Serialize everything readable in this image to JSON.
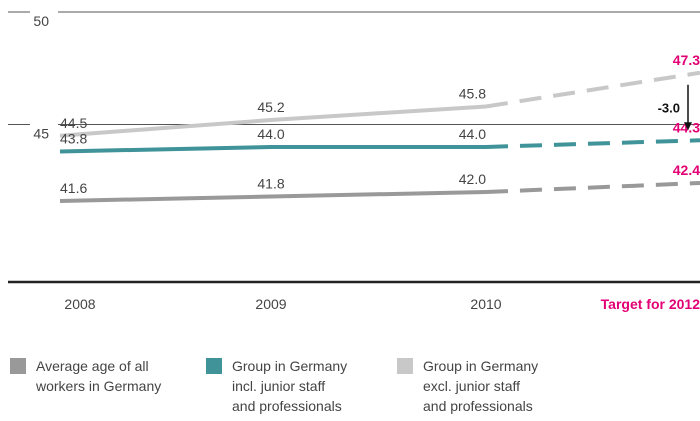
{
  "chart_data": {
    "type": "line",
    "categories": [
      "2008",
      "2009",
      "2010",
      "Target for 2012"
    ],
    "ylim": [
      38,
      50
    ],
    "yticks": [
      45,
      50
    ],
    "title": "",
    "xlabel": "",
    "ylabel": "",
    "series": [
      {
        "name": "Group in Germany excl. junior staff and professionals",
        "color": "#c8c8c8",
        "values": [
          44.5,
          45.2,
          45.8,
          47.3
        ],
        "labels": [
          "44.5",
          "45.2",
          "45.8",
          "47.3"
        ]
      },
      {
        "name": "Group in Germany incl. junior staff and professionals",
        "color": "#3f9399",
        "values": [
          43.8,
          44.0,
          44.0,
          44.3
        ],
        "labels": [
          "43.8",
          "44.0",
          "44.0",
          "44.3"
        ]
      },
      {
        "name": "Average age of all workers in Germany",
        "color": "#999999",
        "values": [
          41.6,
          41.8,
          42.0,
          42.4
        ],
        "labels": [
          "41.6",
          "41.8",
          "42.0",
          "42.4"
        ]
      }
    ],
    "annotation": {
      "label": "-3.0",
      "from": 47.3,
      "to": 44.3
    },
    "target_color": "#e20074"
  },
  "legend": [
    {
      "lines": [
        "Average age of all",
        "workers in Germany"
      ],
      "color": "#999999"
    },
    {
      "lines": [
        "Group in Germany",
        "incl. junior staff",
        "and professionals"
      ],
      "color": "#3f9399"
    },
    {
      "lines": [
        "Group in Germany",
        "excl. junior staff",
        "and professionals"
      ],
      "color": "#c8c8c8"
    }
  ]
}
